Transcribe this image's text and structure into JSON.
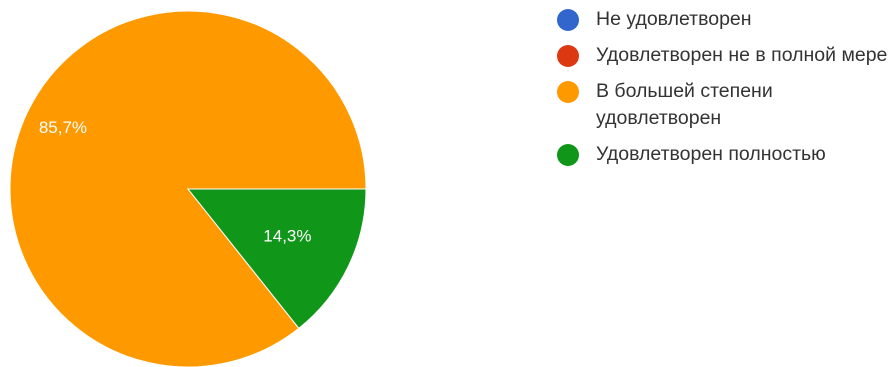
{
  "chart_data": {
    "type": "pie",
    "categories": [
      "Не удовлетворен",
      "Удовлетворен не в полной мере",
      "В большей степени удовлетворен",
      "Удовлетворен полностью"
    ],
    "values": [
      0,
      0,
      85.7,
      14.3
    ],
    "value_labels": [
      "",
      "",
      "85,7%",
      "14,3%"
    ],
    "colors": [
      "#3366cc",
      "#dc3912",
      "#ff9900",
      "#109618"
    ],
    "legend_position": "right",
    "start_angle_deg": 0,
    "direction": "clockwise"
  },
  "legend": {
    "items": [
      {
        "label": "Не удовлетворен",
        "color": "#3366cc"
      },
      {
        "label": "Удовлетворен не в полной мере",
        "color": "#dc3912"
      },
      {
        "label": "В большей степени удовлетворен",
        "color": "#ff9900"
      },
      {
        "label": "Удовлетворен полностью",
        "color": "#109618"
      }
    ]
  }
}
